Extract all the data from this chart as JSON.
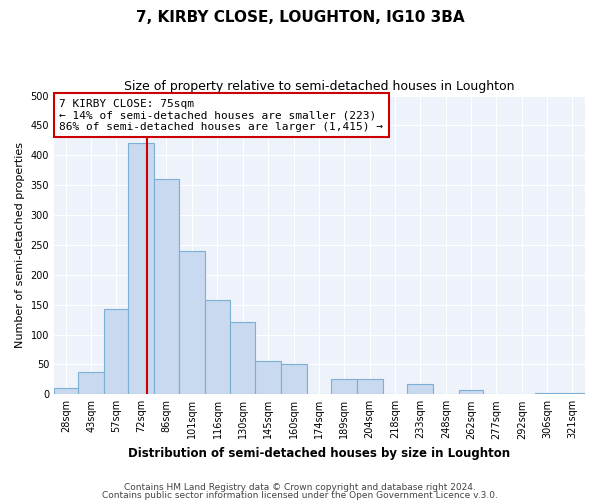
{
  "title": "7, KIRBY CLOSE, LOUGHTON, IG10 3BA",
  "subtitle": "Size of property relative to semi-detached houses in Loughton",
  "xlabel": "Distribution of semi-detached houses by size in Loughton",
  "ylabel": "Number of semi-detached properties",
  "bin_labels": [
    "28sqm",
    "43sqm",
    "57sqm",
    "72sqm",
    "86sqm",
    "101sqm",
    "116sqm",
    "130sqm",
    "145sqm",
    "160sqm",
    "174sqm",
    "189sqm",
    "204sqm",
    "218sqm",
    "233sqm",
    "248sqm",
    "262sqm",
    "277sqm",
    "292sqm",
    "306sqm",
    "321sqm"
  ],
  "bin_edges": [
    21,
    35,
    50,
    64,
    79,
    93,
    108,
    123,
    137,
    152,
    167,
    181,
    196,
    211,
    225,
    240,
    255,
    269,
    284,
    299,
    313,
    328
  ],
  "bar_values": [
    10,
    37,
    143,
    420,
    360,
    240,
    157,
    121,
    55,
    50,
    0,
    25,
    25,
    0,
    17,
    0,
    7,
    0,
    0,
    2,
    3
  ],
  "bar_color": "#c9d9f0",
  "bar_edge_color": "#7bafd4",
  "red_line_x": 75,
  "annotation_title": "7 KIRBY CLOSE: 75sqm",
  "annotation_line1": "← 14% of semi-detached houses are smaller (223)",
  "annotation_line2": "86% of semi-detached houses are larger (1,415) →",
  "annotation_box_color": "#ffffff",
  "annotation_box_edge": "#cc0000",
  "red_line_color": "#cc0000",
  "ylim": [
    0,
    500
  ],
  "yticks": [
    0,
    50,
    100,
    150,
    200,
    250,
    300,
    350,
    400,
    450,
    500
  ],
  "footer1": "Contains HM Land Registry data © Crown copyright and database right 2024.",
  "footer2": "Contains public sector information licensed under the Open Government Licence v.3.0.",
  "bg_color": "#ffffff",
  "plot_bg_color": "#eef2fb",
  "grid_color": "#ffffff",
  "title_fontsize": 11,
  "subtitle_fontsize": 9,
  "ylabel_fontsize": 8,
  "xlabel_fontsize": 8.5,
  "tick_fontsize": 7,
  "annotation_fontsize": 8,
  "footer_fontsize": 6.5
}
